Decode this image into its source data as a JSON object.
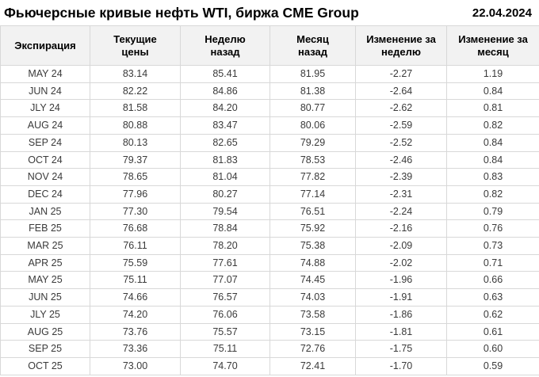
{
  "header": {
    "title": "Фьючерсные кривые нефть WTI, биржа CME Group",
    "date": "22.04.2024"
  },
  "colors": {
    "negative": "#cc2020",
    "positive": "#1d8a1d",
    "header_bg": "#f2f2f2",
    "grid": "#d8d8d8"
  },
  "table": {
    "columns": [
      [
        "Экспирация"
      ],
      [
        "Текущие",
        "цены"
      ],
      [
        "Неделю",
        "назад"
      ],
      [
        "Месяц",
        "назад"
      ],
      [
        "Изменение за",
        "неделю"
      ],
      [
        "Изменение за",
        "месяц"
      ]
    ],
    "rows": [
      {
        "expiration": "MAY 24",
        "current": "83.14",
        "week_ago": "85.41",
        "month_ago": "81.95",
        "week_change": "-2.27",
        "month_change": "1.19"
      },
      {
        "expiration": "JUN 24",
        "current": "82.22",
        "week_ago": "84.86",
        "month_ago": "81.38",
        "week_change": "-2.64",
        "month_change": "0.84"
      },
      {
        "expiration": "JLY 24",
        "current": "81.58",
        "week_ago": "84.20",
        "month_ago": "80.77",
        "week_change": "-2.62",
        "month_change": "0.81"
      },
      {
        "expiration": "AUG 24",
        "current": "80.88",
        "week_ago": "83.47",
        "month_ago": "80.06",
        "week_change": "-2.59",
        "month_change": "0.82"
      },
      {
        "expiration": "SEP 24",
        "current": "80.13",
        "week_ago": "82.65",
        "month_ago": "79.29",
        "week_change": "-2.52",
        "month_change": "0.84"
      },
      {
        "expiration": "OCT 24",
        "current": "79.37",
        "week_ago": "81.83",
        "month_ago": "78.53",
        "week_change": "-2.46",
        "month_change": "0.84"
      },
      {
        "expiration": "NOV 24",
        "current": "78.65",
        "week_ago": "81.04",
        "month_ago": "77.82",
        "week_change": "-2.39",
        "month_change": "0.83"
      },
      {
        "expiration": "DEC 24",
        "current": "77.96",
        "week_ago": "80.27",
        "month_ago": "77.14",
        "week_change": "-2.31",
        "month_change": "0.82"
      },
      {
        "expiration": "JAN 25",
        "current": "77.30",
        "week_ago": "79.54",
        "month_ago": "76.51",
        "week_change": "-2.24",
        "month_change": "0.79"
      },
      {
        "expiration": "FEB 25",
        "current": "76.68",
        "week_ago": "78.84",
        "month_ago": "75.92",
        "week_change": "-2.16",
        "month_change": "0.76"
      },
      {
        "expiration": "MAR 25",
        "current": "76.11",
        "week_ago": "78.20",
        "month_ago": "75.38",
        "week_change": "-2.09",
        "month_change": "0.73"
      },
      {
        "expiration": "APR 25",
        "current": "75.59",
        "week_ago": "77.61",
        "month_ago": "74.88",
        "week_change": "-2.02",
        "month_change": "0.71"
      },
      {
        "expiration": "MAY 25",
        "current": "75.11",
        "week_ago": "77.07",
        "month_ago": "74.45",
        "week_change": "-1.96",
        "month_change": "0.66"
      },
      {
        "expiration": "JUN 25",
        "current": "74.66",
        "week_ago": "76.57",
        "month_ago": "74.03",
        "week_change": "-1.91",
        "month_change": "0.63"
      },
      {
        "expiration": "JLY 25",
        "current": "74.20",
        "week_ago": "76.06",
        "month_ago": "73.58",
        "week_change": "-1.86",
        "month_change": "0.62"
      },
      {
        "expiration": "AUG 25",
        "current": "73.76",
        "week_ago": "75.57",
        "month_ago": "73.15",
        "week_change": "-1.81",
        "month_change": "0.61"
      },
      {
        "expiration": "SEP 25",
        "current": "73.36",
        "week_ago": "75.11",
        "month_ago": "72.76",
        "week_change": "-1.75",
        "month_change": "0.60"
      },
      {
        "expiration": "OCT 25",
        "current": "73.00",
        "week_ago": "74.70",
        "month_ago": "72.41",
        "week_change": "-1.70",
        "month_change": "0.59"
      }
    ]
  },
  "chart_data": {
    "type": "table",
    "title": "Фьючерсные кривые нефть WTI, биржа CME Group",
    "date": "22.04.2024",
    "columns": [
      "Экспирация",
      "Текущие цены",
      "Неделю назад",
      "Месяц назад",
      "Изменение за неделю",
      "Изменение за месяц"
    ],
    "categories": [
      "MAY 24",
      "JUN 24",
      "JLY 24",
      "AUG 24",
      "SEP 24",
      "OCT 24",
      "NOV 24",
      "DEC 24",
      "JAN 25",
      "FEB 25",
      "MAR 25",
      "APR 25",
      "MAY 25",
      "JUN 25",
      "JLY 25",
      "AUG 25",
      "SEP 25",
      "OCT 25"
    ],
    "series": [
      {
        "name": "Текущие цены",
        "values": [
          83.14,
          82.22,
          81.58,
          80.88,
          80.13,
          79.37,
          78.65,
          77.96,
          77.3,
          76.68,
          76.11,
          75.59,
          75.11,
          74.66,
          74.2,
          73.76,
          73.36,
          73.0
        ]
      },
      {
        "name": "Неделю назад",
        "values": [
          85.41,
          84.86,
          84.2,
          83.47,
          82.65,
          81.83,
          81.04,
          80.27,
          79.54,
          78.84,
          78.2,
          77.61,
          77.07,
          76.57,
          76.06,
          75.57,
          75.11,
          74.7
        ]
      },
      {
        "name": "Месяц назад",
        "values": [
          81.95,
          81.38,
          80.77,
          80.06,
          79.29,
          78.53,
          77.82,
          77.14,
          76.51,
          75.92,
          75.38,
          74.88,
          74.45,
          74.03,
          73.58,
          73.15,
          72.76,
          72.41
        ]
      },
      {
        "name": "Изменение за неделю",
        "values": [
          -2.27,
          -2.64,
          -2.62,
          -2.59,
          -2.52,
          -2.46,
          -2.39,
          -2.31,
          -2.24,
          -2.16,
          -2.09,
          -2.02,
          -1.96,
          -1.91,
          -1.86,
          -1.81,
          -1.75,
          -1.7
        ]
      },
      {
        "name": "Изменение за месяц",
        "values": [
          1.19,
          0.84,
          0.81,
          0.82,
          0.84,
          0.84,
          0.83,
          0.82,
          0.79,
          0.76,
          0.73,
          0.71,
          0.66,
          0.63,
          0.62,
          0.61,
          0.6,
          0.59
        ]
      }
    ]
  }
}
